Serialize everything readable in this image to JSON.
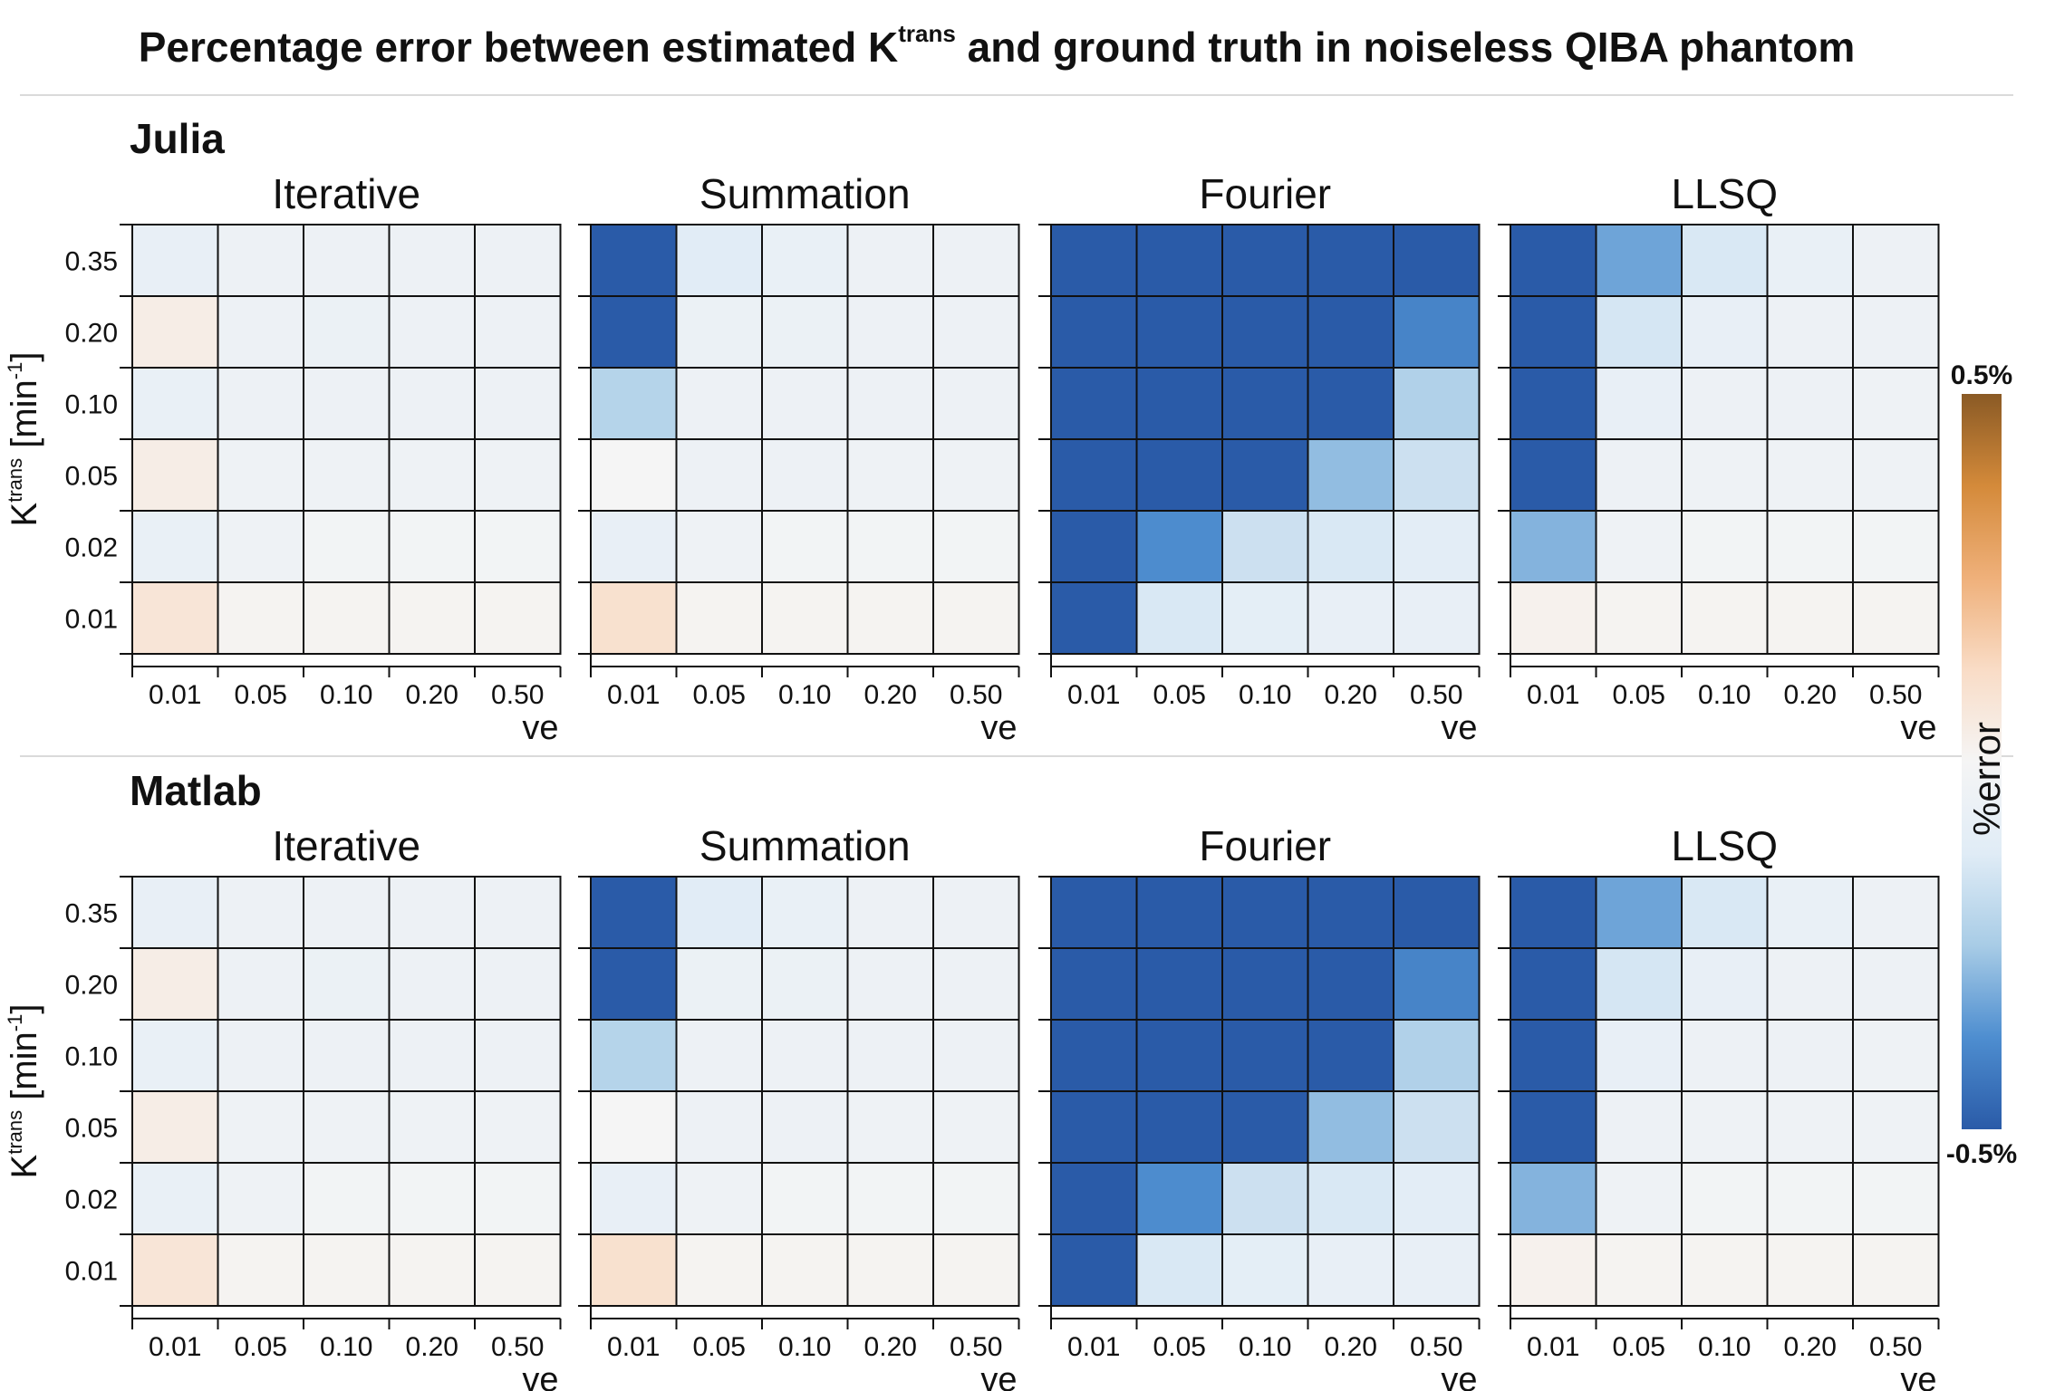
{
  "title": {
    "prefix": "Percentage error between estimated K",
    "sup": "trans",
    "suffix": " and ground truth in noiseless QIBA phantom"
  },
  "sections": [
    {
      "label": "Julia"
    },
    {
      "label": "Matlab"
    }
  ],
  "colorbar": {
    "label": "%error",
    "max_label": "0.5%",
    "min_label": "-0.5%",
    "colors": [
      "#2a5ba8",
      "#4e8ed0",
      "#a8cce6",
      "#e0ecf6",
      "#f5f5f5",
      "#f9dcc6",
      "#efb07a",
      "#d48a3a",
      "#8a5a25"
    ]
  },
  "chart_data": {
    "type": "heatmap",
    "title": "Percentage error between estimated Ktrans and ground truth in noiseless QIBA phantom",
    "xlabel": "ve",
    "ylabel": "Ktrans [min-1]",
    "ylabel_parts": {
      "main": "K",
      "sup": "trans",
      "unit": "[min",
      "unit_sup": "-1",
      "close": "]"
    },
    "x_ticks": [
      "0.01",
      "0.05",
      "0.10",
      "0.20",
      "0.50"
    ],
    "y_ticks": [
      "0.35",
      "0.20",
      "0.10",
      "0.05",
      "0.02",
      "0.01"
    ],
    "color_range": [
      -0.5,
      0.5
    ],
    "panels": [
      {
        "group": "Julia",
        "method": "Iterative",
        "values": [
          [
            -0.08,
            -0.05,
            -0.05,
            -0.05,
            -0.05
          ],
          [
            0.04,
            -0.05,
            -0.06,
            -0.05,
            -0.05
          ],
          [
            -0.07,
            -0.05,
            -0.05,
            -0.05,
            -0.05
          ],
          [
            0.04,
            -0.04,
            -0.04,
            -0.04,
            -0.04
          ],
          [
            -0.07,
            -0.04,
            -0.02,
            -0.02,
            -0.02
          ],
          [
            0.08,
            0.01,
            0.01,
            0.01,
            0.01
          ]
        ]
      },
      {
        "group": "Julia",
        "method": "Summation",
        "values": [
          [
            -0.5,
            -0.12,
            -0.07,
            -0.05,
            -0.05
          ],
          [
            -0.5,
            -0.06,
            -0.06,
            -0.05,
            -0.05
          ],
          [
            -0.22,
            -0.05,
            -0.05,
            -0.05,
            -0.05
          ],
          [
            0.0,
            -0.05,
            -0.05,
            -0.04,
            -0.04
          ],
          [
            -0.08,
            -0.04,
            -0.02,
            -0.02,
            -0.02
          ],
          [
            0.1,
            0.01,
            0.01,
            0.01,
            0.01
          ]
        ]
      },
      {
        "group": "Julia",
        "method": "Fourier",
        "values": [
          [
            -0.5,
            -0.5,
            -0.5,
            -0.5,
            -0.5
          ],
          [
            -0.5,
            -0.5,
            -0.5,
            -0.5,
            -0.4
          ],
          [
            -0.5,
            -0.5,
            -0.5,
            -0.5,
            -0.23
          ],
          [
            -0.5,
            -0.5,
            -0.5,
            -0.28,
            -0.17
          ],
          [
            -0.5,
            -0.38,
            -0.17,
            -0.14,
            -0.11
          ],
          [
            -0.5,
            -0.14,
            -0.1,
            -0.08,
            -0.08
          ]
        ]
      },
      {
        "group": "Julia",
        "method": "LLSQ",
        "values": [
          [
            -0.5,
            -0.33,
            -0.14,
            -0.07,
            -0.05
          ],
          [
            -0.5,
            -0.15,
            -0.08,
            -0.05,
            -0.05
          ],
          [
            -0.5,
            -0.08,
            -0.05,
            -0.05,
            -0.04
          ],
          [
            -0.5,
            -0.05,
            -0.04,
            -0.04,
            -0.04
          ],
          [
            -0.3,
            -0.04,
            -0.02,
            -0.02,
            -0.02
          ],
          [
            0.02,
            0.01,
            0.01,
            0.01,
            0.01
          ]
        ]
      },
      {
        "group": "Matlab",
        "method": "Iterative",
        "values": [
          [
            -0.08,
            -0.05,
            -0.05,
            -0.05,
            -0.05
          ],
          [
            0.04,
            -0.05,
            -0.06,
            -0.05,
            -0.05
          ],
          [
            -0.07,
            -0.05,
            -0.05,
            -0.05,
            -0.05
          ],
          [
            0.04,
            -0.04,
            -0.04,
            -0.04,
            -0.04
          ],
          [
            -0.07,
            -0.04,
            -0.02,
            -0.02,
            -0.02
          ],
          [
            0.08,
            0.01,
            0.01,
            0.01,
            0.01
          ]
        ]
      },
      {
        "group": "Matlab",
        "method": "Summation",
        "values": [
          [
            -0.5,
            -0.12,
            -0.07,
            -0.05,
            -0.05
          ],
          [
            -0.5,
            -0.06,
            -0.06,
            -0.05,
            -0.05
          ],
          [
            -0.22,
            -0.05,
            -0.05,
            -0.05,
            -0.05
          ],
          [
            0.0,
            -0.05,
            -0.05,
            -0.04,
            -0.04
          ],
          [
            -0.08,
            -0.04,
            -0.02,
            -0.02,
            -0.02
          ],
          [
            0.1,
            0.01,
            0.01,
            0.01,
            0.01
          ]
        ]
      },
      {
        "group": "Matlab",
        "method": "Fourier",
        "values": [
          [
            -0.5,
            -0.5,
            -0.5,
            -0.5,
            -0.5
          ],
          [
            -0.5,
            -0.5,
            -0.5,
            -0.5,
            -0.4
          ],
          [
            -0.5,
            -0.5,
            -0.5,
            -0.5,
            -0.23
          ],
          [
            -0.5,
            -0.5,
            -0.5,
            -0.28,
            -0.17
          ],
          [
            -0.5,
            -0.38,
            -0.17,
            -0.14,
            -0.11
          ],
          [
            -0.5,
            -0.14,
            -0.1,
            -0.08,
            -0.08
          ]
        ]
      },
      {
        "group": "Matlab",
        "method": "LLSQ",
        "values": [
          [
            -0.5,
            -0.33,
            -0.14,
            -0.07,
            -0.05
          ],
          [
            -0.5,
            -0.15,
            -0.08,
            -0.05,
            -0.05
          ],
          [
            -0.5,
            -0.08,
            -0.05,
            -0.05,
            -0.04
          ],
          [
            -0.5,
            -0.05,
            -0.04,
            -0.04,
            -0.04
          ],
          [
            -0.3,
            -0.04,
            -0.02,
            -0.02,
            -0.02
          ],
          [
            0.02,
            0.01,
            0.01,
            0.01,
            0.01
          ]
        ]
      }
    ]
  }
}
